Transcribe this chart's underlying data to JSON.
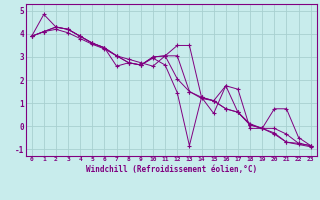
{
  "xlabel": "Windchill (Refroidissement éolien,°C)",
  "background_color": "#c8ecec",
  "line_color": "#800080",
  "grid_color": "#a8d0d0",
  "xlim": [
    -0.5,
    23.5
  ],
  "ylim": [
    -1.3,
    5.3
  ],
  "xticks": [
    0,
    1,
    2,
    3,
    4,
    5,
    6,
    7,
    8,
    9,
    10,
    11,
    12,
    13,
    14,
    15,
    16,
    17,
    18,
    19,
    20,
    21,
    22,
    23
  ],
  "yticks": [
    -1,
    0,
    1,
    2,
    3,
    4,
    5
  ],
  "series": [
    [
      3.9,
      4.1,
      4.2,
      4.05,
      3.8,
      3.55,
      3.35,
      3.05,
      2.9,
      2.75,
      2.6,
      3.05,
      3.05,
      1.5,
      1.2,
      1.1,
      0.75,
      0.6,
      0.05,
      -0.1,
      -0.3,
      -0.7,
      -0.75,
      -0.85
    ],
    [
      3.9,
      4.1,
      4.3,
      4.2,
      3.9,
      3.6,
      3.4,
      3.05,
      2.75,
      2.65,
      3.0,
      3.05,
      3.5,
      3.5,
      1.25,
      0.55,
      1.75,
      0.6,
      0.1,
      -0.1,
      -0.35,
      -0.7,
      -0.8,
      -0.9
    ],
    [
      3.9,
      4.85,
      4.3,
      4.2,
      3.9,
      3.6,
      3.4,
      2.6,
      2.75,
      2.65,
      2.95,
      2.65,
      1.45,
      -0.85,
      1.25,
      1.1,
      1.75,
      1.6,
      -0.1,
      -0.1,
      0.75,
      0.75,
      -0.5,
      -0.85
    ],
    [
      3.9,
      4.1,
      4.3,
      4.2,
      3.9,
      3.6,
      3.4,
      3.05,
      2.75,
      2.65,
      3.0,
      3.05,
      2.05,
      1.5,
      1.25,
      1.1,
      0.75,
      0.6,
      0.05,
      -0.1,
      -0.1,
      -0.35,
      -0.75,
      -0.85
    ]
  ]
}
